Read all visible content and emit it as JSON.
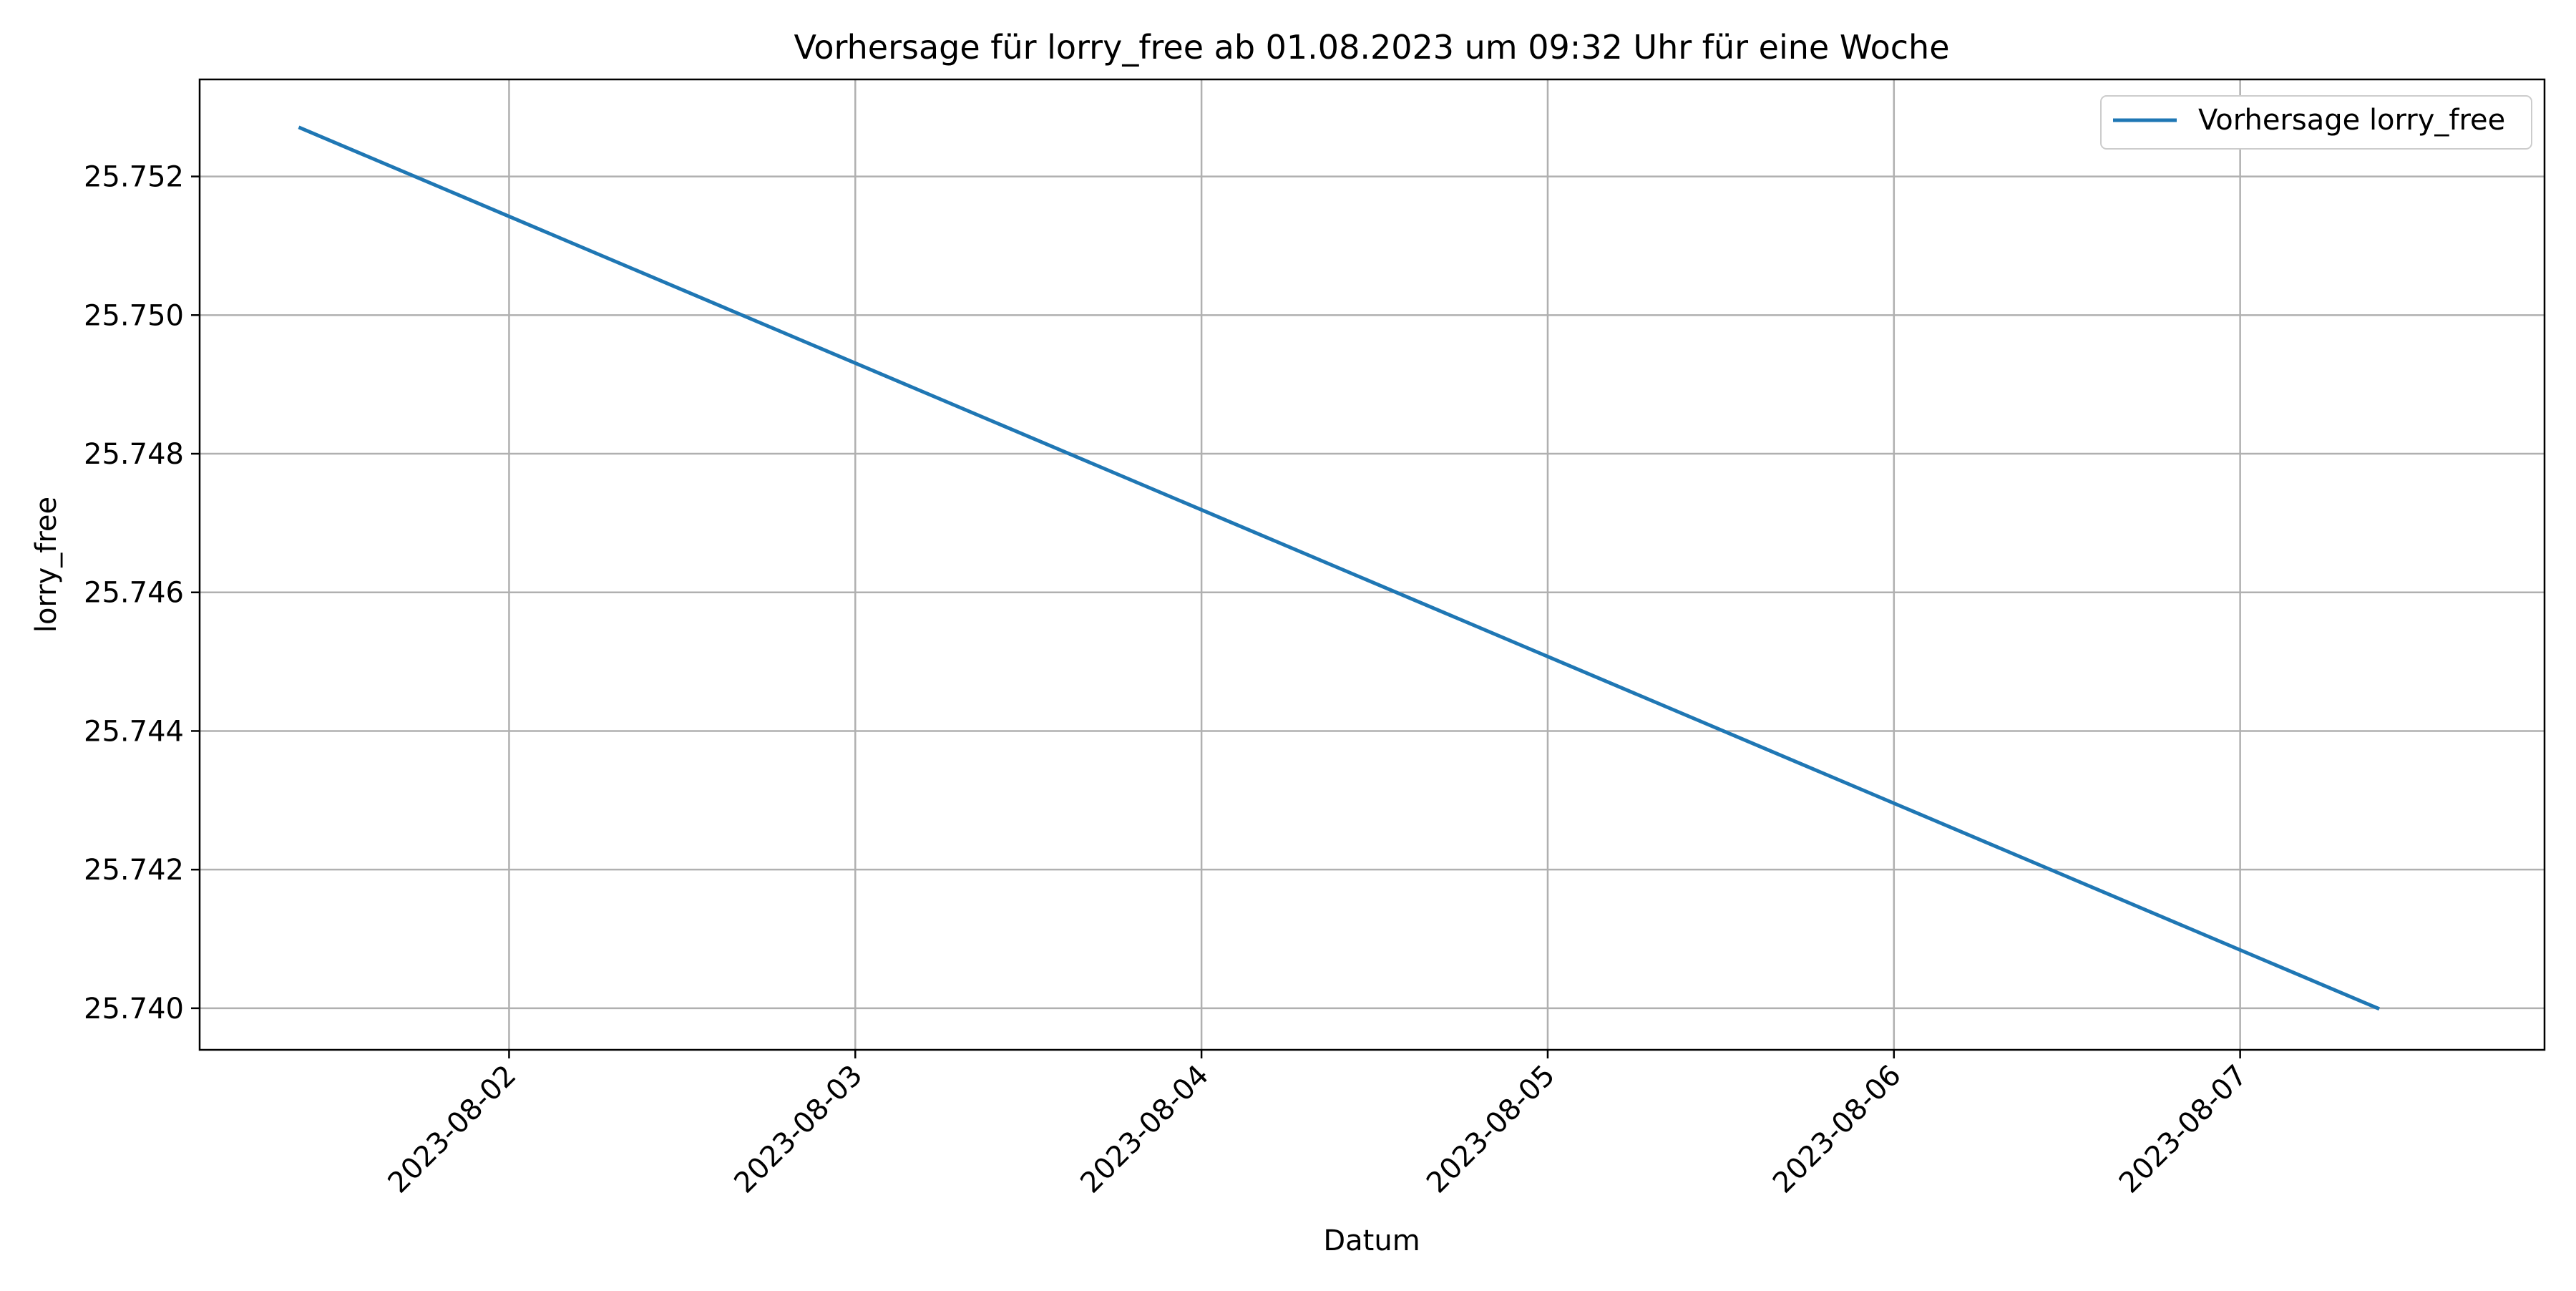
{
  "chart_data": {
    "type": "line",
    "title": "Vorhersage für lorry_free ab 01.08.2023 um 09:32 Uhr für eine Woche",
    "xlabel": "Datum",
    "ylabel": "lorry_free",
    "x_type": "datetime",
    "xlim": [
      "2023-08-01T02:33:00",
      "2023-08-07T21:06:00"
    ],
    "ylim": [
      25.7394,
      25.7534
    ],
    "x_ticks": [
      "2023-08-02",
      "2023-08-03",
      "2023-08-04",
      "2023-08-05",
      "2023-08-06",
      "2023-08-07"
    ],
    "y_ticks": [
      25.74,
      25.742,
      25.744,
      25.746,
      25.748,
      25.75,
      25.752
    ],
    "y_tick_labels": [
      "25.740",
      "25.742",
      "25.744",
      "25.746",
      "25.748",
      "25.750",
      "25.752"
    ],
    "grid": true,
    "legend_position": "top-right",
    "series": [
      {
        "name": "Vorhersage lorry_free",
        "color": "#1f77b4",
        "x": [
          "2023-08-01T09:32:00",
          "2023-08-07T09:32:00"
        ],
        "y": [
          25.7527,
          25.74
        ]
      }
    ]
  }
}
